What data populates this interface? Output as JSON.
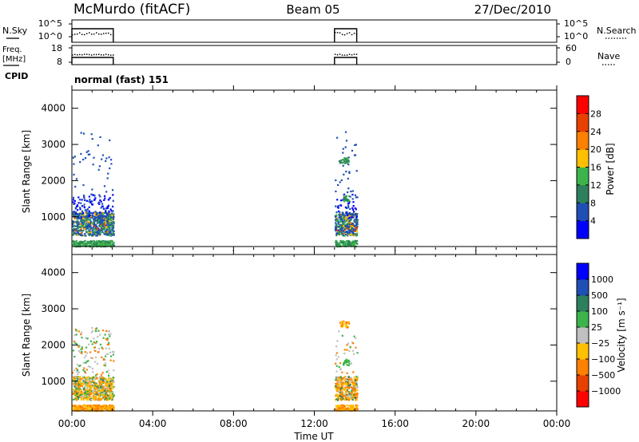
{
  "header": {
    "station": "McMurdo (fitACF)",
    "beam": "Beam 05",
    "date": "27/Dec/2010"
  },
  "noise_panel": {
    "left_label": "N.Sky",
    "right_label": "N.Search",
    "left_ticks": [
      "10^5",
      "10^0"
    ],
    "right_ticks": [
      "10^5",
      "10^0"
    ]
  },
  "freq_panel": {
    "left_label_line1": "Freq.",
    "left_label_line2": "[MHz]",
    "right_label": "Nave",
    "left_ticks": [
      "18",
      "8"
    ],
    "right_ticks": [
      "60",
      "0"
    ]
  },
  "cpid_panel": {
    "label": "CPID",
    "text": "normal (fast) 151"
  },
  "x_axis": {
    "label": "Time UT",
    "ticks": [
      "00:00",
      "04:00",
      "08:00",
      "12:00",
      "16:00",
      "20:00",
      "00:00"
    ],
    "range_hours": [
      0,
      24
    ]
  },
  "colors": {
    "power": [
      "#0000ff",
      "#1f4fb4",
      "#2e7f5e",
      "#3cb44b",
      "#ffc000",
      "#ff8000",
      "#e84000",
      "#ff0000"
    ],
    "velocity": [
      "#ff0000",
      "#e84000",
      "#ff8000",
      "#ffc000",
      "#c0c0c0",
      "#3cb44b",
      "#2e7f5e",
      "#1f4fb4",
      "#0000ff"
    ]
  },
  "chart_data": [
    {
      "type": "heatmap",
      "name": "power",
      "ylabel": "Slant Range [km]",
      "ylim": [
        180,
        4500
      ],
      "yticks": [
        "1000",
        "2000",
        "3000",
        "4000"
      ],
      "colorbar_label": "Power [dB]",
      "colorbar_ticks": [
        "4",
        "8",
        "12",
        "16",
        "20",
        "24",
        "28"
      ],
      "data_intervals_hours": [
        [
          0.0,
          2.05
        ],
        [
          13.0,
          14.1
        ]
      ]
    },
    {
      "type": "heatmap",
      "name": "velocity",
      "ylabel": "Slant Range [km]",
      "ylim": [
        180,
        4500
      ],
      "yticks": [
        "1000",
        "2000",
        "3000",
        "4000"
      ],
      "colorbar_label": "Velocity [m s⁻¹]",
      "colorbar_ticks": [
        "1000",
        "500",
        "100",
        "25",
        "−25",
        "−100",
        "−500",
        "−1000"
      ],
      "data_intervals_hours": [
        [
          0.0,
          2.05
        ],
        [
          13.0,
          14.1
        ]
      ]
    }
  ]
}
